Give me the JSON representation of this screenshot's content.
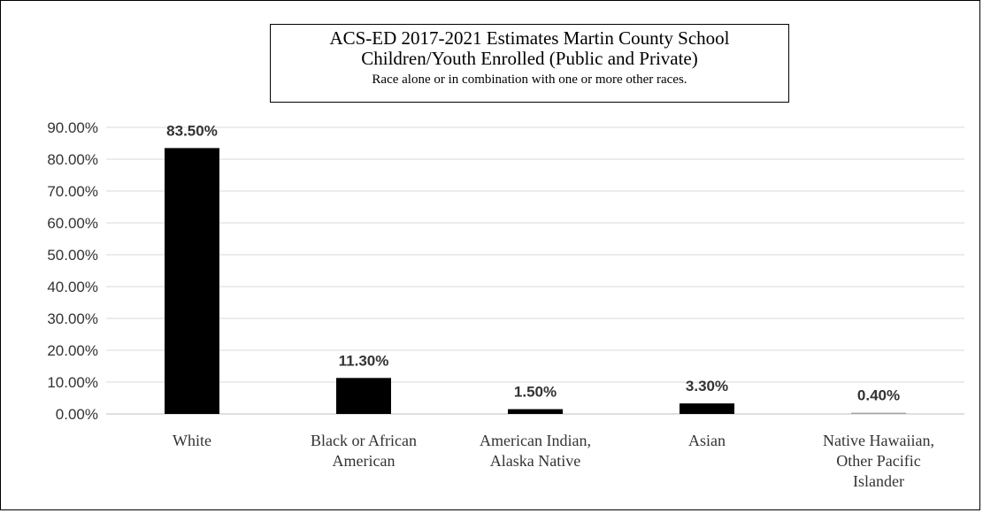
{
  "chart_data": {
    "type": "bar",
    "title": "ACS-ED 2017-2021 Estimates Martin County School",
    "title_line2": "Children/Youth Enrolled (Public and Private)",
    "subtitle": "Race alone or in combination with one or more other races.",
    "categories": [
      [
        "White"
      ],
      [
        "Black or African",
        "American"
      ],
      [
        "American Indian,",
        "Alaska Native"
      ],
      [
        "Asian"
      ],
      [
        "Native Hawaiian,",
        "Other Pacific",
        "Islander"
      ]
    ],
    "values": [
      83.5,
      11.3,
      1.5,
      3.3,
      0.4
    ],
    "data_labels": [
      "83.50%",
      "11.30%",
      "1.50%",
      "3.30%",
      "0.40%"
    ],
    "y_ticks": [
      "0.00%",
      "10.00%",
      "20.00%",
      "30.00%",
      "40.00%",
      "50.00%",
      "60.00%",
      "70.00%",
      "80.00%",
      "90.00%"
    ],
    "ylim": [
      0,
      90
    ],
    "xlabel": "",
    "ylabel": "",
    "grid": true,
    "legend": "none",
    "bar_color": "#000000",
    "last_bar_color": "#a6a6a6"
  }
}
